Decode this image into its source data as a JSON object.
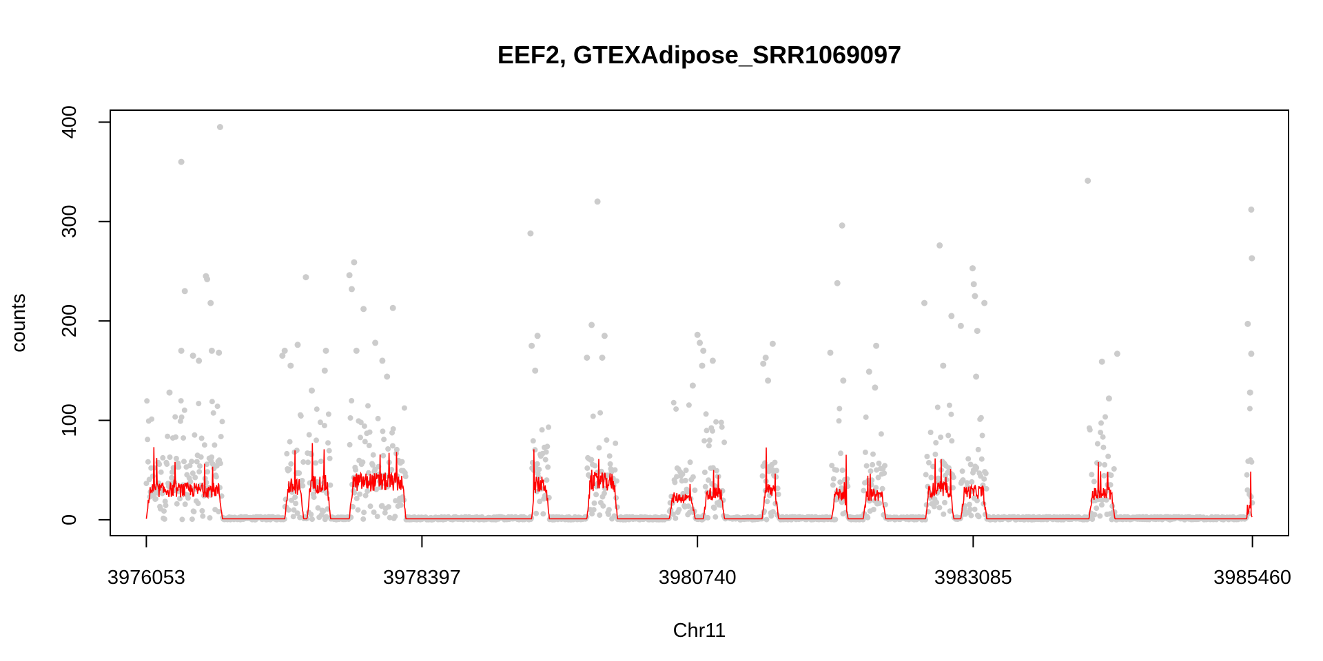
{
  "chart_data": {
    "type": "scatter",
    "title": "EEF2, GTEXAdipose_SRR1069097",
    "xlabel": "Chr11",
    "ylabel": "counts",
    "xlim": [
      3975746,
      3985767
    ],
    "ylim": [
      -16,
      412
    ],
    "x_ticks": [
      3976053,
      3978397,
      3980740,
      3983085,
      3985460
    ],
    "x_tick_labels": [
      "3976053",
      "3978397",
      "3980740",
      "3983085",
      "3985460"
    ],
    "y_ticks": [
      0,
      100,
      200,
      300,
      400
    ],
    "y_tick_labels": [
      "0",
      "100",
      "200",
      "300",
      "400"
    ],
    "grid": false,
    "legend": "none",
    "colors": {
      "points": "#cccccc",
      "line": "#ff0000",
      "axis": "#000000"
    },
    "peaks": [
      {
        "start": 3976053,
        "end": 3976700,
        "level": 30
      },
      {
        "start": 3977230,
        "end": 3977390,
        "level": 33
      },
      {
        "start": 3977420,
        "end": 3977620,
        "level": 36
      },
      {
        "start": 3977780,
        "end": 3978260,
        "level": 38
      },
      {
        "start": 3979330,
        "end": 3979480,
        "level": 35
      },
      {
        "start": 3979800,
        "end": 3980060,
        "level": 38
      },
      {
        "start": 3980500,
        "end": 3980720,
        "level": 22
      },
      {
        "start": 3980790,
        "end": 3980970,
        "level": 26
      },
      {
        "start": 3981290,
        "end": 3981430,
        "level": 30
      },
      {
        "start": 3981880,
        "end": 3982020,
        "level": 26
      },
      {
        "start": 3982150,
        "end": 3982340,
        "level": 25
      },
      {
        "start": 3982680,
        "end": 3982920,
        "level": 30
      },
      {
        "start": 3982980,
        "end": 3983200,
        "level": 28
      },
      {
        "start": 3984070,
        "end": 3984290,
        "level": 26
      },
      {
        "start": 3985410,
        "end": 3985460,
        "level": 15
      }
    ],
    "outliers": [
      {
        "x": 3976350,
        "y": 360
      },
      {
        "x": 3976380,
        "y": 230
      },
      {
        "x": 3976350,
        "y": 170
      },
      {
        "x": 3976250,
        "y": 128
      },
      {
        "x": 3976450,
        "y": 165
      },
      {
        "x": 3976500,
        "y": 160
      },
      {
        "x": 3976560,
        "y": 245
      },
      {
        "x": 3976570,
        "y": 242
      },
      {
        "x": 3976600,
        "y": 218
      },
      {
        "x": 3976610,
        "y": 170
      },
      {
        "x": 3976680,
        "y": 395
      },
      {
        "x": 3976670,
        "y": 168
      },
      {
        "x": 3977210,
        "y": 165
      },
      {
        "x": 3977230,
        "y": 170
      },
      {
        "x": 3977280,
        "y": 155
      },
      {
        "x": 3977340,
        "y": 176
      },
      {
        "x": 3977410,
        "y": 244
      },
      {
        "x": 3977460,
        "y": 130
      },
      {
        "x": 3977580,
        "y": 170
      },
      {
        "x": 3977570,
        "y": 150
      },
      {
        "x": 3977780,
        "y": 246
      },
      {
        "x": 3977800,
        "y": 232
      },
      {
        "x": 3977820,
        "y": 259
      },
      {
        "x": 3977840,
        "y": 170
      },
      {
        "x": 3977900,
        "y": 212
      },
      {
        "x": 3978000,
        "y": 178
      },
      {
        "x": 3978060,
        "y": 160
      },
      {
        "x": 3978100,
        "y": 144
      },
      {
        "x": 3978150,
        "y": 213
      },
      {
        "x": 3979320,
        "y": 288
      },
      {
        "x": 3979330,
        "y": 175
      },
      {
        "x": 3979380,
        "y": 185
      },
      {
        "x": 3979360,
        "y": 150
      },
      {
        "x": 3979800,
        "y": 163
      },
      {
        "x": 3979840,
        "y": 196
      },
      {
        "x": 3979890,
        "y": 320
      },
      {
        "x": 3979950,
        "y": 185
      },
      {
        "x": 3979930,
        "y": 163
      },
      {
        "x": 3980700,
        "y": 135
      },
      {
        "x": 3980740,
        "y": 186
      },
      {
        "x": 3980760,
        "y": 178
      },
      {
        "x": 3980790,
        "y": 170
      },
      {
        "x": 3980870,
        "y": 160
      },
      {
        "x": 3980780,
        "y": 155
      },
      {
        "x": 3981300,
        "y": 157
      },
      {
        "x": 3981320,
        "y": 163
      },
      {
        "x": 3981380,
        "y": 177
      },
      {
        "x": 3981340,
        "y": 140
      },
      {
        "x": 3981870,
        "y": 168
      },
      {
        "x": 3981930,
        "y": 238
      },
      {
        "x": 3981970,
        "y": 296
      },
      {
        "x": 3981980,
        "y": 140
      },
      {
        "x": 3982200,
        "y": 149
      },
      {
        "x": 3982260,
        "y": 175
      },
      {
        "x": 3982250,
        "y": 133
      },
      {
        "x": 3982670,
        "y": 218
      },
      {
        "x": 3982800,
        "y": 276
      },
      {
        "x": 3982900,
        "y": 205
      },
      {
        "x": 3982830,
        "y": 155
      },
      {
        "x": 3982980,
        "y": 195
      },
      {
        "x": 3983080,
        "y": 253
      },
      {
        "x": 3983090,
        "y": 237
      },
      {
        "x": 3983100,
        "y": 225
      },
      {
        "x": 3983120,
        "y": 190
      },
      {
        "x": 3983180,
        "y": 218
      },
      {
        "x": 3983110,
        "y": 144
      },
      {
        "x": 3984060,
        "y": 341
      },
      {
        "x": 3984180,
        "y": 159
      },
      {
        "x": 3984240,
        "y": 122
      },
      {
        "x": 3984310,
        "y": 167
      },
      {
        "x": 3985420,
        "y": 197
      },
      {
        "x": 3985440,
        "y": 128
      },
      {
        "x": 3985450,
        "y": 312
      },
      {
        "x": 3985455,
        "y": 263
      },
      {
        "x": 3985450,
        "y": 167
      }
    ]
  }
}
